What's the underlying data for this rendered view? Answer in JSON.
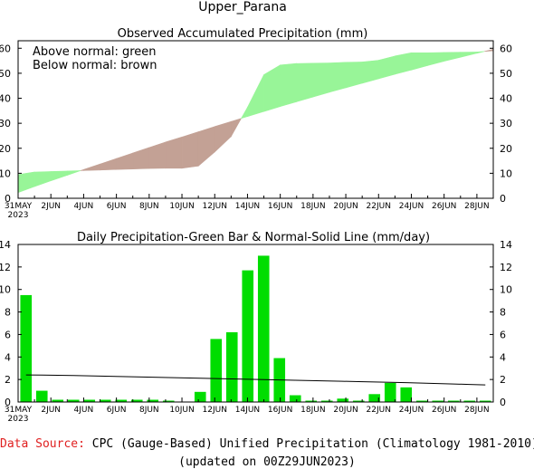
{
  "page_title": "Upper_Parana",
  "footer": {
    "source_label": "Data Source:",
    "source_text": "CPC (Gauge-Based) Unified Precipitation (Climatology 1981-2010)",
    "updated": "(updated on 00Z29JUN2023)"
  },
  "colors": {
    "above_normal": "#98f598",
    "below_normal": "#c3a195",
    "bars": "#00dd00",
    "normal_line": "#000000",
    "source_label": "#e02020"
  },
  "chart_data": [
    {
      "type": "area",
      "title": "Observed Accumulated Precipitation (mm)",
      "annotations": [
        "Above normal: green",
        "Below normal: brown"
      ],
      "ylim": [
        0,
        63
      ],
      "yticks": [
        0,
        10,
        20,
        30,
        40,
        50,
        60
      ],
      "xlim": [
        0,
        29
      ],
      "x_tick_labels": [
        "31MAY\n2023",
        "2JUN",
        "4JUN",
        "6JUN",
        "8JUN",
        "10JUN",
        "12JUN",
        "14JUN",
        "16JUN",
        "18JUN",
        "20JUN",
        "22JUN",
        "24JUN",
        "26JUN",
        "28JUN"
      ],
      "dates": [
        "31MAY",
        "1JUN",
        "2JUN",
        "3JUN",
        "4JUN",
        "5JUN",
        "6JUN",
        "7JUN",
        "8JUN",
        "9JUN",
        "10JUN",
        "11JUN",
        "12JUN",
        "13JUN",
        "14JUN",
        "15JUN",
        "16JUN",
        "17JUN",
        "18JUN",
        "19JUN",
        "20JUN",
        "21JUN",
        "22JUN",
        "23JUN",
        "24JUN",
        "25JUN",
        "26JUN",
        "27JUN",
        "28JUN",
        "29JUN"
      ],
      "series": [
        {
          "name": "Observed",
          "values": [
            9.5,
            10.5,
            10.7,
            10.9,
            11.1,
            11.3,
            11.5,
            11.7,
            11.9,
            12.0,
            12.0,
            12.9,
            18.5,
            24.7,
            36.4,
            49.4,
            53.3,
            53.9,
            54.0,
            54.1,
            54.4,
            54.5,
            55.2,
            56.9,
            58.2,
            58.2,
            58.3,
            58.4,
            58.5,
            59.0
          ]
        },
        {
          "name": "Normal",
          "values": [
            2.3,
            4.7,
            7.0,
            9.2,
            11.5,
            13.7,
            15.9,
            18.1,
            20.3,
            22.5,
            24.5,
            26.6,
            28.7,
            30.7,
            32.7,
            34.7,
            36.7,
            38.6,
            40.5,
            42.4,
            44.2,
            46.0,
            47.8,
            49.6,
            51.3,
            53.1,
            54.8,
            56.4,
            58.0,
            59.6
          ]
        }
      ]
    },
    {
      "type": "bar",
      "title": "Daily Precipitation-Green Bar & Normal-Solid Line (mm/day)",
      "ylim": [
        0,
        14
      ],
      "yticks": [
        0,
        2,
        4,
        6,
        8,
        10,
        12,
        14
      ],
      "x_tick_labels": [
        "31MAY\n2023",
        "2JUN",
        "4JUN",
        "6JUN",
        "8JUN",
        "10JUN",
        "12JUN",
        "14JUN",
        "16JUN",
        "18JUN",
        "20JUN",
        "22JUN",
        "24JUN",
        "26JUN",
        "28JUN"
      ],
      "categories": [
        "31MAY",
        "1JUN",
        "2JUN",
        "3JUN",
        "4JUN",
        "5JUN",
        "6JUN",
        "7JUN",
        "8JUN",
        "9JUN",
        "10JUN",
        "11JUN",
        "12JUN",
        "13JUN",
        "14JUN",
        "15JUN",
        "16JUN",
        "17JUN",
        "18JUN",
        "19JUN",
        "20JUN",
        "21JUN",
        "22JUN",
        "23JUN",
        "24JUN",
        "25JUN",
        "26JUN",
        "27JUN",
        "28JUN",
        "29JUN"
      ],
      "series": [
        {
          "name": "Daily Precipitation",
          "values": [
            9.5,
            1.0,
            0.2,
            0.2,
            0.2,
            0.2,
            0.2,
            0.2,
            0.2,
            0.1,
            0.0,
            0.9,
            5.6,
            6.2,
            11.7,
            13.0,
            3.9,
            0.6,
            0.1,
            0.1,
            0.3,
            0.1,
            0.7,
            1.7,
            1.3,
            0.1,
            0.1,
            0.1,
            0.1,
            0.1
          ]
        },
        {
          "name": "Normal",
          "values": [
            2.4,
            2.39,
            2.37,
            2.35,
            2.32,
            2.29,
            2.26,
            2.23,
            2.2,
            2.17,
            2.14,
            2.11,
            2.08,
            2.05,
            2.02,
            1.99,
            1.96,
            1.93,
            1.9,
            1.87,
            1.84,
            1.81,
            1.78,
            1.75,
            1.72,
            1.68,
            1.64,
            1.6,
            1.56,
            1.52
          ]
        }
      ]
    }
  ]
}
